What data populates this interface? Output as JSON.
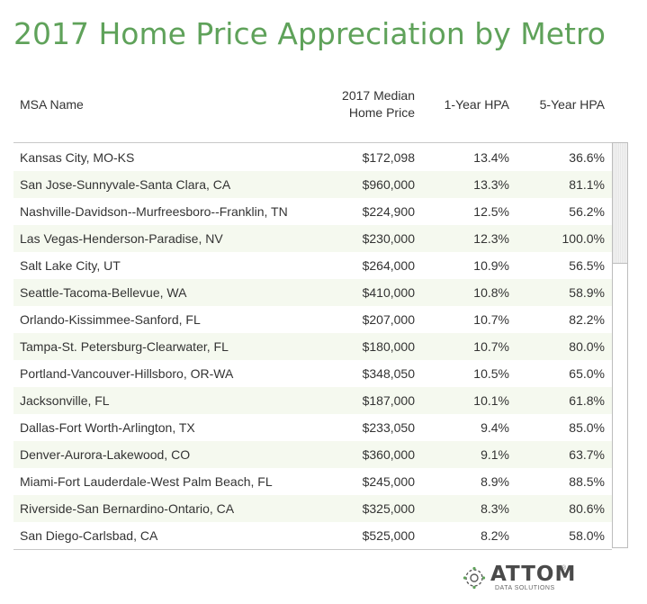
{
  "title": "2017 Home Price Appreciation by Metro",
  "header": {
    "msa_name": "MSA Name",
    "median_price_line1": "2017 Median",
    "median_price_line2": "Home Price",
    "hpa_1yr": "1-Year HPA",
    "hpa_5yr": "5-Year HPA"
  },
  "chart_data": {
    "type": "table",
    "title": "2017 Home Price Appreciation by Metro",
    "columns": [
      "MSA Name",
      "2017 Median Home Price",
      "1-Year HPA",
      "5-Year HPA"
    ],
    "rows": [
      [
        "Kansas City, MO-KS",
        "$172,098",
        "13.4%",
        "36.6%"
      ],
      [
        "San Jose-Sunnyvale-Santa Clara, CA",
        "$960,000",
        "13.3%",
        "81.1%"
      ],
      [
        "Nashville-Davidson--Murfreesboro--Franklin, TN",
        "$224,900",
        "12.5%",
        "56.2%"
      ],
      [
        "Las Vegas-Henderson-Paradise, NV",
        "$230,000",
        "12.3%",
        "100.0%"
      ],
      [
        "Salt Lake City, UT",
        "$264,000",
        "10.9%",
        "56.5%"
      ],
      [
        "Seattle-Tacoma-Bellevue, WA",
        "$410,000",
        "10.8%",
        "58.9%"
      ],
      [
        "Orlando-Kissimmee-Sanford, FL",
        "$207,000",
        "10.7%",
        "82.2%"
      ],
      [
        "Tampa-St. Petersburg-Clearwater, FL",
        "$180,000",
        "10.7%",
        "80.0%"
      ],
      [
        "Portland-Vancouver-Hillsboro, OR-WA",
        "$348,050",
        "10.5%",
        "65.0%"
      ],
      [
        "Jacksonville, FL",
        "$187,000",
        "10.1%",
        "61.8%"
      ],
      [
        "Dallas-Fort Worth-Arlington, TX",
        "$233,050",
        "9.4%",
        "85.0%"
      ],
      [
        "Denver-Aurora-Lakewood, CO",
        "$360,000",
        "9.1%",
        "63.7%"
      ],
      [
        "Miami-Fort Lauderdale-West Palm Beach, FL",
        "$245,000",
        "8.9%",
        "88.5%"
      ],
      [
        "Riverside-San Bernardino-Ontario, CA",
        "$325,000",
        "8.3%",
        "80.6%"
      ],
      [
        "San Diego-Carlsbad, CA",
        "$525,000",
        "8.2%",
        "58.0%"
      ]
    ]
  },
  "logo": {
    "name": "ATTOM",
    "registered": "®",
    "subtitle": "DATA SOLUTIONS",
    "icon": "attom-logo-icon"
  },
  "colors": {
    "title": "#5fa25a",
    "alt_row": "#f5f9ef"
  }
}
